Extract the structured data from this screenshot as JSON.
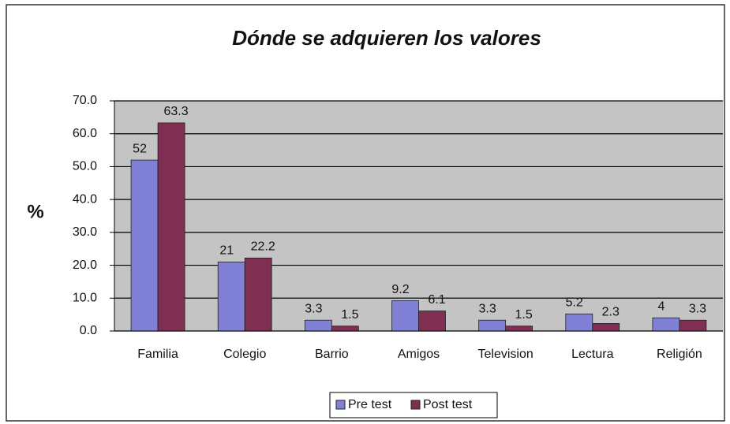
{
  "chart_data": {
    "type": "bar",
    "title": "Dónde se adquieren los valores",
    "y_label": "%",
    "categories": [
      "Familia",
      "Colegio",
      "Barrio",
      "Amigos",
      "Television",
      "Lectura",
      "Religión"
    ],
    "series": [
      {
        "name": "Pre test",
        "color": "#7f80d6",
        "values": [
          52,
          21,
          3.3,
          9.2,
          3.3,
          5.2,
          4
        ]
      },
      {
        "name": "Post test",
        "color": "#7e2f52",
        "values": [
          63.3,
          22.2,
          1.5,
          6.1,
          1.5,
          2.3,
          3.3
        ]
      }
    ],
    "ylim": [
      0,
      70
    ],
    "yticks": [
      {
        "value": 0,
        "label": "0.0"
      },
      {
        "value": 10,
        "label": "10.0"
      },
      {
        "value": 20,
        "label": "20.0"
      },
      {
        "value": 30,
        "label": "30.0"
      },
      {
        "value": 40,
        "label": "40.0"
      },
      {
        "value": 50,
        "label": "50.0"
      },
      {
        "value": 60,
        "label": "60.0"
      },
      {
        "value": 70,
        "label": "70.0"
      }
    ],
    "grid": true,
    "legend": "bottom"
  }
}
